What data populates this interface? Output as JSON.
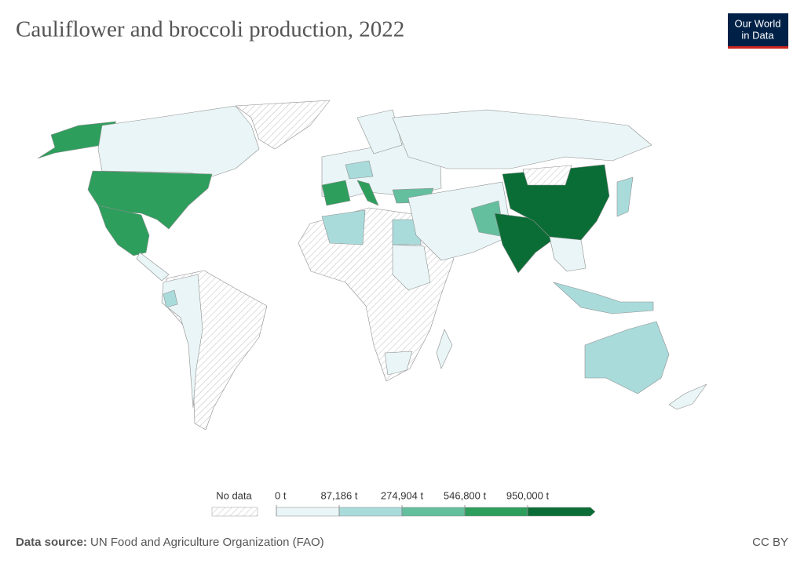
{
  "chart_data": {
    "type": "map",
    "title": "Cauliflower and broccoli production, 2022",
    "logo": [
      "Our World",
      "in Data"
    ],
    "legend": {
      "no_data_label": "No data",
      "ticks": [
        {
          "value": 0,
          "label": "0 t"
        },
        {
          "value": 87186,
          "label": "87,186 t"
        },
        {
          "value": 274904,
          "label": "274,904 t"
        },
        {
          "value": 546800,
          "label": "546,800 t"
        },
        {
          "value": 950000,
          "label": "950,000 t"
        }
      ],
      "colors": [
        "#e9f5f6",
        "#a9dbdb",
        "#64bf9f",
        "#2e9e5d",
        "#0b6d36"
      ]
    },
    "source_label": "Data source:",
    "source": "UN Food and Agriculture Organization (FAO)",
    "license": "CC BY"
  }
}
